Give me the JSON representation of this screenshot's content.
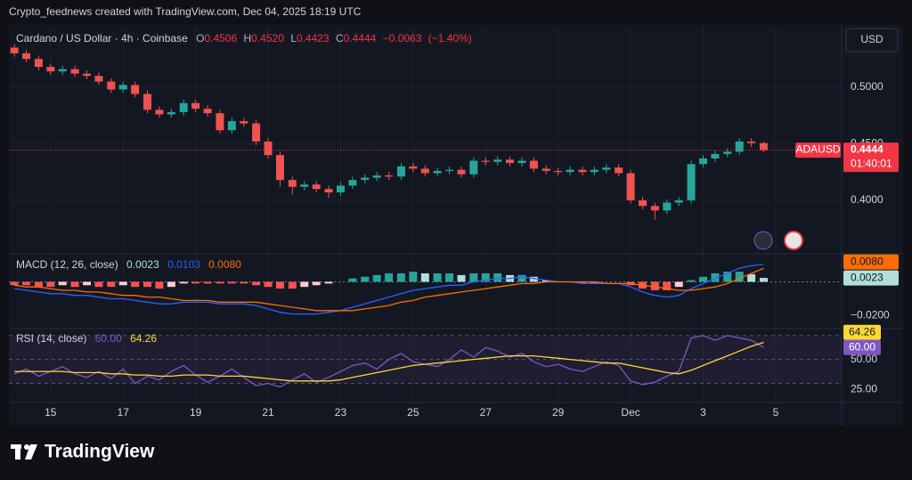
{
  "header": "Crypto_feednews created with TradingView.com, Dec 04, 2025 18:19 UTC",
  "brand": "TradingView",
  "currency": "USD",
  "chart_data": [
    {
      "type": "candlestick",
      "title": "Cardano / US Dollar · 4h · Coinbase",
      "symbol": "ADAUSD",
      "countdown": "01:40:01",
      "ohlc_keys": [
        "O",
        "H",
        "L",
        "C"
      ],
      "legend": {
        "high": {
          "value": 0.452,
          "label": "0.4520"
        },
        "change": {
          "value": -0.0063,
          "label": "−0.0063"
        },
        "change_pct": {
          "value": -1.4,
          "label": "(−1.40%)"
        }
      },
      "up_color": "#26a69a",
      "down_color": "#ef5350",
      "grid": true,
      "x": [
        14,
        14.33,
        14.67,
        15,
        15.33,
        15.67,
        16,
        16.33,
        16.67,
        17,
        17.33,
        17.67,
        18,
        18.33,
        18.67,
        19,
        19.33,
        19.67,
        20,
        20.33,
        20.67,
        21,
        21.33,
        21.67,
        22,
        22.33,
        22.67,
        23,
        23.33,
        23.67,
        24,
        24.33,
        24.67,
        25,
        25.33,
        25.67,
        26,
        26.33,
        26.67,
        27,
        27.33,
        27.67,
        28,
        28.33,
        28.67,
        29,
        29.33,
        29.67,
        30,
        30.33,
        30.67,
        31,
        31.33,
        31.67,
        32,
        32.33,
        32.67,
        33,
        33.33,
        33.67,
        34,
        34.33,
        34.67
      ],
      "open": [
        0.535,
        0.53,
        0.525,
        0.518,
        0.514,
        0.516,
        0.512,
        0.51,
        0.505,
        0.498,
        0.502,
        0.494,
        0.48,
        0.476,
        0.478,
        0.486,
        0.481,
        0.477,
        0.462,
        0.47,
        0.468,
        0.452,
        0.44,
        0.418,
        0.412,
        0.414,
        0.41,
        0.407,
        0.413,
        0.418,
        0.42,
        0.422,
        0.421,
        0.43,
        0.428,
        0.424,
        0.426,
        0.427,
        0.423,
        0.435,
        0.434,
        0.436,
        0.433,
        0.435,
        0.428,
        0.426,
        0.425,
        0.427,
        0.425,
        0.427,
        0.429,
        0.424,
        0.4,
        0.395,
        0.391,
        0.398,
        0.4,
        0.432,
        0.437,
        0.441,
        0.443,
        0.452,
        0.4506
      ],
      "high": [
        0.538,
        0.533,
        0.528,
        0.521,
        0.519,
        0.519,
        0.515,
        0.513,
        0.508,
        0.505,
        0.505,
        0.497,
        0.483,
        0.481,
        0.489,
        0.489,
        0.484,
        0.48,
        0.473,
        0.473,
        0.471,
        0.455,
        0.443,
        0.421,
        0.417,
        0.417,
        0.413,
        0.416,
        0.421,
        0.423,
        0.425,
        0.425,
        0.433,
        0.433,
        0.431,
        0.429,
        0.43,
        0.43,
        0.438,
        0.438,
        0.439,
        0.439,
        0.438,
        0.438,
        0.431,
        0.429,
        0.43,
        0.43,
        0.43,
        0.432,
        0.432,
        0.427,
        0.403,
        0.398,
        0.401,
        0.403,
        0.435,
        0.44,
        0.444,
        0.446,
        0.455,
        0.455,
        0.452
      ],
      "low": [
        0.527,
        0.522,
        0.515,
        0.511,
        0.511,
        0.509,
        0.507,
        0.502,
        0.495,
        0.495,
        0.491,
        0.477,
        0.473,
        0.473,
        0.475,
        0.478,
        0.474,
        0.459,
        0.459,
        0.465,
        0.449,
        0.437,
        0.412,
        0.405,
        0.409,
        0.407,
        0.402,
        0.404,
        0.41,
        0.415,
        0.417,
        0.418,
        0.418,
        0.425,
        0.421,
        0.421,
        0.423,
        0.42,
        0.42,
        0.431,
        0.431,
        0.43,
        0.43,
        0.425,
        0.423,
        0.422,
        0.422,
        0.422,
        0.422,
        0.424,
        0.421,
        0.397,
        0.392,
        0.383,
        0.388,
        0.395,
        0.397,
        0.429,
        0.434,
        0.438,
        0.44,
        0.447,
        0.4423
      ],
      "close": [
        0.53,
        0.525,
        0.518,
        0.514,
        0.516,
        0.512,
        0.51,
        0.505,
        0.498,
        0.502,
        0.494,
        0.48,
        0.476,
        0.478,
        0.486,
        0.481,
        0.477,
        0.462,
        0.47,
        0.468,
        0.452,
        0.44,
        0.418,
        0.412,
        0.414,
        0.41,
        0.407,
        0.413,
        0.418,
        0.42,
        0.422,
        0.421,
        0.43,
        0.428,
        0.424,
        0.426,
        0.427,
        0.423,
        0.435,
        0.434,
        0.436,
        0.433,
        0.435,
        0.428,
        0.426,
        0.425,
        0.427,
        0.425,
        0.427,
        0.429,
        0.424,
        0.4,
        0.395,
        0.391,
        0.398,
        0.4,
        0.432,
        0.437,
        0.441,
        0.443,
        0.452,
        0.4506,
        0.4444
      ],
      "xlim": [
        13.85,
        36.82
      ],
      "xticks": [
        15,
        17,
        19,
        21,
        23,
        25,
        27,
        29,
        {
          "value": 31,
          "label": "Dec"
        },
        {
          "value": 33,
          "label": "3"
        },
        {
          "value": 35,
          "label": "5"
        }
      ],
      "ylim": [
        0.3543,
        0.5535
      ],
      "yticks": [
        {
          "value": 0.4,
          "label": "0.4000"
        },
        {
          "value": 0.45,
          "label": "0.4500"
        },
        {
          "value": 0.5,
          "label": "0.5000"
        }
      ]
    },
    {
      "type": "macd",
      "title": "MACD (12, 26, close)",
      "series": [
        {
          "name": "MACD",
          "color": "#2962ff",
          "values": [
            -0.004,
            -0.005,
            -0.006,
            -0.007,
            -0.007,
            -0.008,
            -0.008,
            -0.009,
            -0.01,
            -0.01,
            -0.011,
            -0.012,
            -0.013,
            -0.013,
            -0.012,
            -0.012,
            -0.012,
            -0.013,
            -0.013,
            -0.013,
            -0.014,
            -0.016,
            -0.018,
            -0.019,
            -0.019,
            -0.019,
            -0.018,
            -0.017,
            -0.015,
            -0.013,
            -0.011,
            -0.009,
            -0.007,
            -0.005,
            -0.004,
            -0.003,
            -0.002,
            -0.002,
            0.0,
            0.001,
            0.002,
            0.002,
            0.003,
            0.002,
            0.001,
            0.0,
            0.0,
            -0.001,
            -0.001,
            -0.001,
            -0.001,
            -0.003,
            -0.006,
            -0.008,
            -0.009,
            -0.008,
            -0.004,
            -0.001,
            0.002,
            0.005,
            0.008,
            0.0095,
            0.0103
          ]
        },
        {
          "name": "Signal",
          "color": "#ff6d00",
          "values": [
            -0.002,
            -0.003,
            -0.003,
            -0.004,
            -0.005,
            -0.005,
            -0.006,
            -0.006,
            -0.007,
            -0.008,
            -0.008,
            -0.009,
            -0.009,
            -0.01,
            -0.011,
            -0.011,
            -0.011,
            -0.012,
            -0.012,
            -0.012,
            -0.012,
            -0.013,
            -0.014,
            -0.015,
            -0.016,
            -0.017,
            -0.017,
            -0.017,
            -0.017,
            -0.016,
            -0.015,
            -0.014,
            -0.012,
            -0.011,
            -0.009,
            -0.008,
            -0.007,
            -0.006,
            -0.005,
            -0.004,
            -0.003,
            -0.002,
            -0.001,
            -0.001,
            0.0,
            0.0,
            0.0,
            0.0,
            0.0,
            -0.001,
            -0.001,
            -0.001,
            -0.002,
            -0.003,
            -0.004,
            -0.005,
            -0.005,
            -0.004,
            -0.003,
            -0.001,
            0.002,
            0.005,
            0.008
          ]
        }
      ],
      "histogram": [
        -0.002,
        -0.002,
        -0.003,
        -0.003,
        -0.002,
        -0.003,
        -0.002,
        -0.003,
        -0.003,
        -0.002,
        -0.003,
        -0.003,
        -0.004,
        -0.003,
        -0.001,
        -0.001,
        -0.001,
        -0.001,
        -0.001,
        -0.001,
        -0.002,
        -0.003,
        -0.004,
        -0.004,
        -0.003,
        -0.002,
        -0.001,
        0.0,
        0.002,
        0.003,
        0.004,
        0.005,
        0.005,
        0.006,
        0.005,
        0.005,
        0.005,
        0.004,
        0.005,
        0.005,
        0.005,
        0.004,
        0.004,
        0.003,
        0.001,
        0.0,
        0.0,
        -0.001,
        -0.001,
        0.0,
        0.0,
        -0.002,
        -0.004,
        -0.005,
        -0.005,
        -0.003,
        0.001,
        0.003,
        0.005,
        0.006,
        0.006,
        0.0045,
        0.0023
      ],
      "histogram_colors": [
        "#26a69a",
        "#b2dfdb",
        "#ff5252",
        "#ffcdd2"
      ],
      "last_signal": {
        "value": 0.008,
        "label": "0.0080"
      },
      "ylim": [
        -0.0266,
        0.0155
      ],
      "yticks": [
        {
          "value": -0.02,
          "label": "−0.0200"
        }
      ]
    },
    {
      "type": "rsi",
      "title": "RSI (14, close)",
      "series": [
        {
          "name": "RSI",
          "color": "#7e57c2",
          "values": [
            38,
            42,
            36,
            40,
            44,
            38,
            35,
            40,
            34,
            42,
            30,
            36,
            33,
            40,
            45,
            37,
            31,
            36,
            42,
            35,
            28,
            30,
            27,
            33,
            38,
            31,
            35,
            40,
            45,
            47,
            42,
            50,
            55,
            48,
            46,
            44,
            50,
            58,
            52,
            60,
            57,
            52,
            55,
            48,
            44,
            46,
            42,
            40,
            44,
            48,
            45,
            32,
            29,
            31,
            36,
            40,
            68,
            70,
            66,
            70,
            68,
            66,
            60
          ]
        },
        {
          "name": "RSI MA",
          "color": "#fdd835",
          "values": [
            40,
            40,
            40,
            40,
            40,
            39,
            39,
            39,
            38,
            38,
            37,
            37,
            36,
            36,
            37,
            37,
            37,
            36,
            36,
            36,
            35,
            34,
            33,
            32,
            32,
            32,
            32,
            33,
            35,
            37,
            39,
            41,
            43,
            45,
            46,
            47,
            48,
            49,
            50,
            51,
            52,
            53,
            53,
            53,
            52,
            51,
            50,
            49,
            48,
            47,
            47,
            45,
            43,
            41,
            39,
            38,
            41,
            45,
            49,
            53,
            57,
            61,
            64.26
          ]
        }
      ],
      "last_rsi": {
        "value": 60,
        "label": "60.00"
      },
      "band": [
        30,
        70
      ],
      "ylim": [
        14,
        74.3
      ],
      "yticks": [
        {
          "value": 25,
          "label": "25.00"
        },
        {
          "value": 50,
          "label": "50.00"
        }
      ]
    }
  ]
}
